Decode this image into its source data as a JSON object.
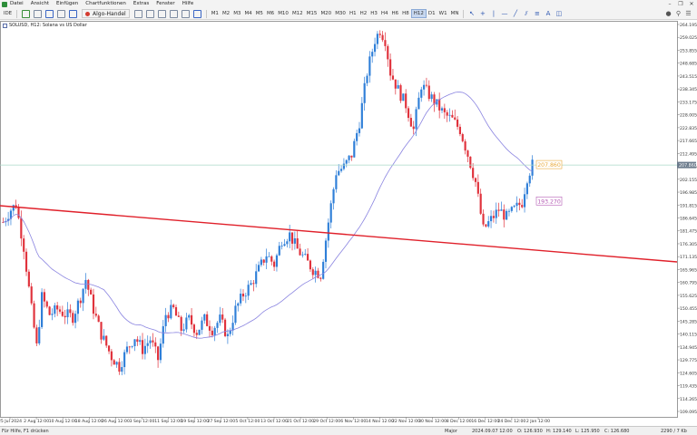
{
  "menu": {
    "items": [
      "Datei",
      "Ansicht",
      "Einfügen",
      "Chartfunktionen",
      "Extras",
      "Fenster",
      "Hilfe"
    ],
    "window_controls": [
      "–",
      "❐",
      "✕"
    ]
  },
  "toolbar": {
    "ide_label": "IDE",
    "algo_label": "Algo-Handel",
    "timeframes": [
      "M1",
      "M2",
      "M3",
      "M4",
      "M5",
      "M6",
      "M10",
      "M12",
      "M15",
      "M20",
      "M30",
      "H1",
      "H2",
      "H3",
      "H4",
      "H6",
      "H8",
      "H12",
      "D1",
      "W1",
      "MN"
    ],
    "active_timeframe": "H12",
    "drawing_tools": [
      "cursor-icon",
      "crosshair-icon",
      "vertical-line-icon",
      "horizontal-line-icon",
      "trend-line-icon",
      "channel-icon",
      "fibonacci-icon",
      "text-icon",
      "shapes-icon"
    ]
  },
  "chart": {
    "symbol_label": "SOLUSD, H12:  Solana vs US Dollar",
    "price_axis": [
      "264.195",
      "259.025",
      "253.855",
      "248.685",
      "243.515",
      "238.345",
      "233.175",
      "228.005",
      "222.835",
      "217.665",
      "212.495",
      "207.325",
      "202.155",
      "196.985",
      "191.815",
      "186.645",
      "181.475",
      "176.305",
      "171.135",
      "165.965",
      "160.795",
      "155.625",
      "150.455",
      "145.285",
      "140.115",
      "134.945",
      "129.775",
      "124.605",
      "119.435",
      "114.265",
      "109.095"
    ],
    "time_axis": [
      "25 Jul 2024",
      "2 Aug 12:00",
      "10 Aug 12:00",
      "18 Aug 12:00",
      "26 Aug 12:00",
      "3 Sep 12:00",
      "11 Sep 12:00",
      "19 Sep 12:00",
      "27 Sep 12:00",
      "5 Oct 12:00",
      "13 Oct 12:00",
      "21 Oct 12:00",
      "29 Oct 12:00",
      "6 Nov 12:00",
      "14 Nov 12:00",
      "22 Nov 12:00",
      "30 Nov 12:00",
      "8 Dec 12:00",
      "16 Dec 12:00",
      "24 Dec 12:00",
      "2 Jan 12:00"
    ],
    "bid_price_label": "207.860",
    "ma_price_label": "193.270",
    "current_price_tag": "207.860",
    "colors": {
      "bull": "#2f7fd8",
      "bear": "#e0323c",
      "ma": "#8a84e0",
      "trendline": "#e0202a",
      "bid_line": "#a9d8c8",
      "bid_label": "#e8a93a",
      "ma_label": "#b45ab4"
    }
  },
  "status": {
    "help": "Für Hilfe, F1 drücken",
    "profile": "Major",
    "datetime": "2024.09.07 12:00",
    "open": "O: 126.930",
    "high": "H: 129.140",
    "low": "L: 125.950",
    "close": "C: 126.680",
    "traffic": "2290 / 7 Kb"
  }
}
